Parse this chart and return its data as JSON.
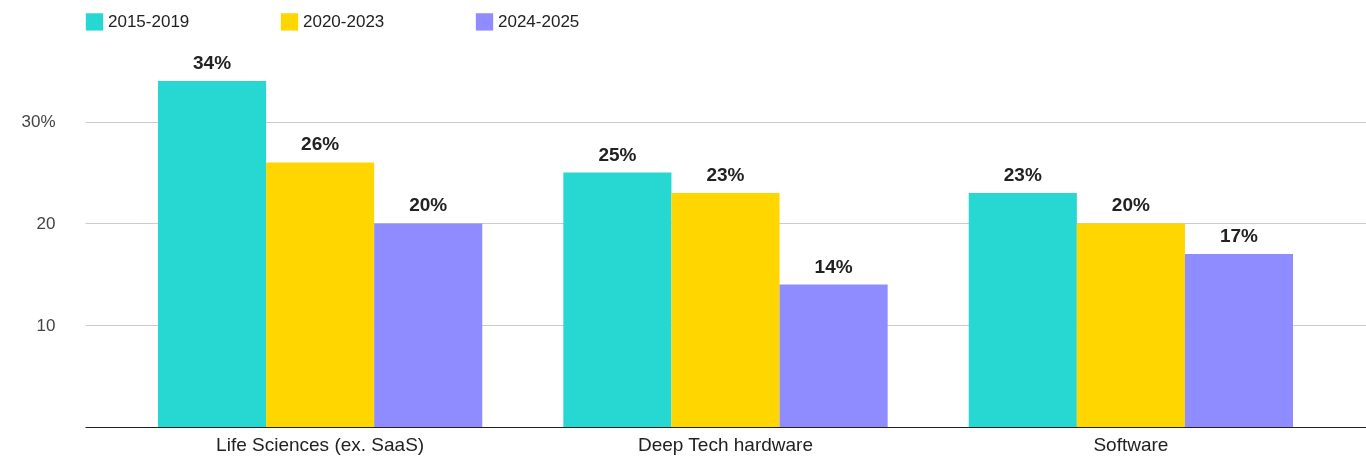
{
  "chart_data": {
    "type": "bar",
    "categories": [
      "Life Sciences (ex. SaaS)",
      "Deep Tech hardware",
      "Software"
    ],
    "series": [
      {
        "name": "2015-2019",
        "color": "#26d7d2",
        "values": [
          34,
          25,
          23
        ],
        "value_labels": [
          "34%",
          "25%",
          "23%"
        ]
      },
      {
        "name": "2020-2023",
        "color": "#ffd600",
        "values": [
          26,
          23,
          20
        ],
        "value_labels": [
          "26%",
          "23%",
          "20%"
        ]
      },
      {
        "name": "2024-2025",
        "color": "#8f8cff",
        "values": [
          20,
          14,
          17
        ],
        "value_labels": [
          "20%",
          "14%",
          "17%"
        ]
      }
    ],
    "ylim": [
      0,
      34
    ],
    "yticks": [
      10,
      20,
      {
        "value": 30,
        "label": "30%"
      }
    ],
    "grid": "y",
    "legend": "top left"
  }
}
